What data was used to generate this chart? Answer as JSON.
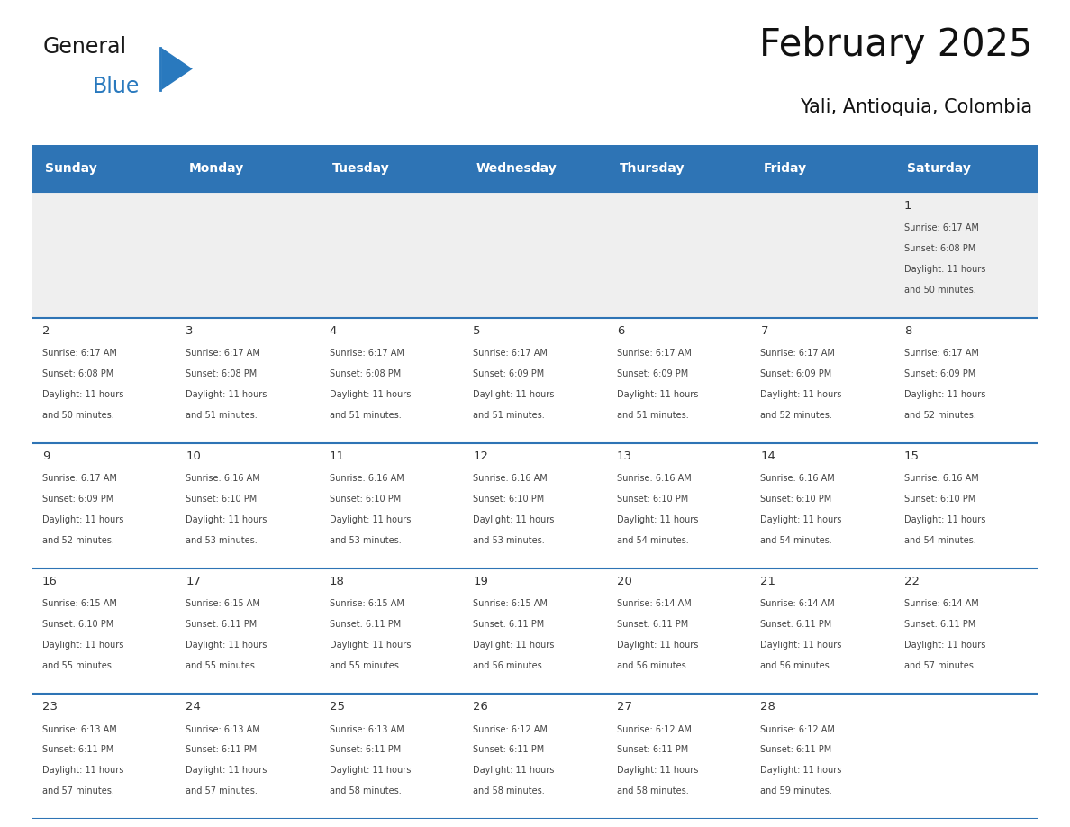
{
  "title": "February 2025",
  "subtitle": "Yali, Antioquia, Colombia",
  "header_bg": "#2E74B5",
  "header_text_color": "#FFFFFF",
  "days_of_week": [
    "Sunday",
    "Monday",
    "Tuesday",
    "Wednesday",
    "Thursday",
    "Friday",
    "Saturday"
  ],
  "cell_bg_week1": "#EFEFEF",
  "cell_bg_other": "#FFFFFF",
  "cell_border_color": "#2E74B5",
  "text_color": "#444444",
  "num_color": "#333333",
  "logo_general_color": "#1A1A1A",
  "logo_blue_color": "#2979BE",
  "calendar_data": [
    [
      null,
      null,
      null,
      null,
      null,
      null,
      {
        "day": 1,
        "sunrise": "6:17 AM",
        "sunset": "6:08 PM",
        "daylight_h": "11",
        "daylight_m": "50"
      }
    ],
    [
      {
        "day": 2,
        "sunrise": "6:17 AM",
        "sunset": "6:08 PM",
        "daylight_h": "11",
        "daylight_m": "50"
      },
      {
        "day": 3,
        "sunrise": "6:17 AM",
        "sunset": "6:08 PM",
        "daylight_h": "11",
        "daylight_m": "51"
      },
      {
        "day": 4,
        "sunrise": "6:17 AM",
        "sunset": "6:08 PM",
        "daylight_h": "11",
        "daylight_m": "51"
      },
      {
        "day": 5,
        "sunrise": "6:17 AM",
        "sunset": "6:09 PM",
        "daylight_h": "11",
        "daylight_m": "51"
      },
      {
        "day": 6,
        "sunrise": "6:17 AM",
        "sunset": "6:09 PM",
        "daylight_h": "11",
        "daylight_m": "51"
      },
      {
        "day": 7,
        "sunrise": "6:17 AM",
        "sunset": "6:09 PM",
        "daylight_h": "11",
        "daylight_m": "52"
      },
      {
        "day": 8,
        "sunrise": "6:17 AM",
        "sunset": "6:09 PM",
        "daylight_h": "11",
        "daylight_m": "52"
      }
    ],
    [
      {
        "day": 9,
        "sunrise": "6:17 AM",
        "sunset": "6:09 PM",
        "daylight_h": "11",
        "daylight_m": "52"
      },
      {
        "day": 10,
        "sunrise": "6:16 AM",
        "sunset": "6:10 PM",
        "daylight_h": "11",
        "daylight_m": "53"
      },
      {
        "day": 11,
        "sunrise": "6:16 AM",
        "sunset": "6:10 PM",
        "daylight_h": "11",
        "daylight_m": "53"
      },
      {
        "day": 12,
        "sunrise": "6:16 AM",
        "sunset": "6:10 PM",
        "daylight_h": "11",
        "daylight_m": "53"
      },
      {
        "day": 13,
        "sunrise": "6:16 AM",
        "sunset": "6:10 PM",
        "daylight_h": "11",
        "daylight_m": "54"
      },
      {
        "day": 14,
        "sunrise": "6:16 AM",
        "sunset": "6:10 PM",
        "daylight_h": "11",
        "daylight_m": "54"
      },
      {
        "day": 15,
        "sunrise": "6:16 AM",
        "sunset": "6:10 PM",
        "daylight_h": "11",
        "daylight_m": "54"
      }
    ],
    [
      {
        "day": 16,
        "sunrise": "6:15 AM",
        "sunset": "6:10 PM",
        "daylight_h": "11",
        "daylight_m": "55"
      },
      {
        "day": 17,
        "sunrise": "6:15 AM",
        "sunset": "6:11 PM",
        "daylight_h": "11",
        "daylight_m": "55"
      },
      {
        "day": 18,
        "sunrise": "6:15 AM",
        "sunset": "6:11 PM",
        "daylight_h": "11",
        "daylight_m": "55"
      },
      {
        "day": 19,
        "sunrise": "6:15 AM",
        "sunset": "6:11 PM",
        "daylight_h": "11",
        "daylight_m": "56"
      },
      {
        "day": 20,
        "sunrise": "6:14 AM",
        "sunset": "6:11 PM",
        "daylight_h": "11",
        "daylight_m": "56"
      },
      {
        "day": 21,
        "sunrise": "6:14 AM",
        "sunset": "6:11 PM",
        "daylight_h": "11",
        "daylight_m": "56"
      },
      {
        "day": 22,
        "sunrise": "6:14 AM",
        "sunset": "6:11 PM",
        "daylight_h": "11",
        "daylight_m": "57"
      }
    ],
    [
      {
        "day": 23,
        "sunrise": "6:13 AM",
        "sunset": "6:11 PM",
        "daylight_h": "11",
        "daylight_m": "57"
      },
      {
        "day": 24,
        "sunrise": "6:13 AM",
        "sunset": "6:11 PM",
        "daylight_h": "11",
        "daylight_m": "57"
      },
      {
        "day": 25,
        "sunrise": "6:13 AM",
        "sunset": "6:11 PM",
        "daylight_h": "11",
        "daylight_m": "58"
      },
      {
        "day": 26,
        "sunrise": "6:12 AM",
        "sunset": "6:11 PM",
        "daylight_h": "11",
        "daylight_m": "58"
      },
      {
        "day": 27,
        "sunrise": "6:12 AM",
        "sunset": "6:11 PM",
        "daylight_h": "11",
        "daylight_m": "58"
      },
      {
        "day": 28,
        "sunrise": "6:12 AM",
        "sunset": "6:11 PM",
        "daylight_h": "11",
        "daylight_m": "59"
      },
      null
    ]
  ]
}
